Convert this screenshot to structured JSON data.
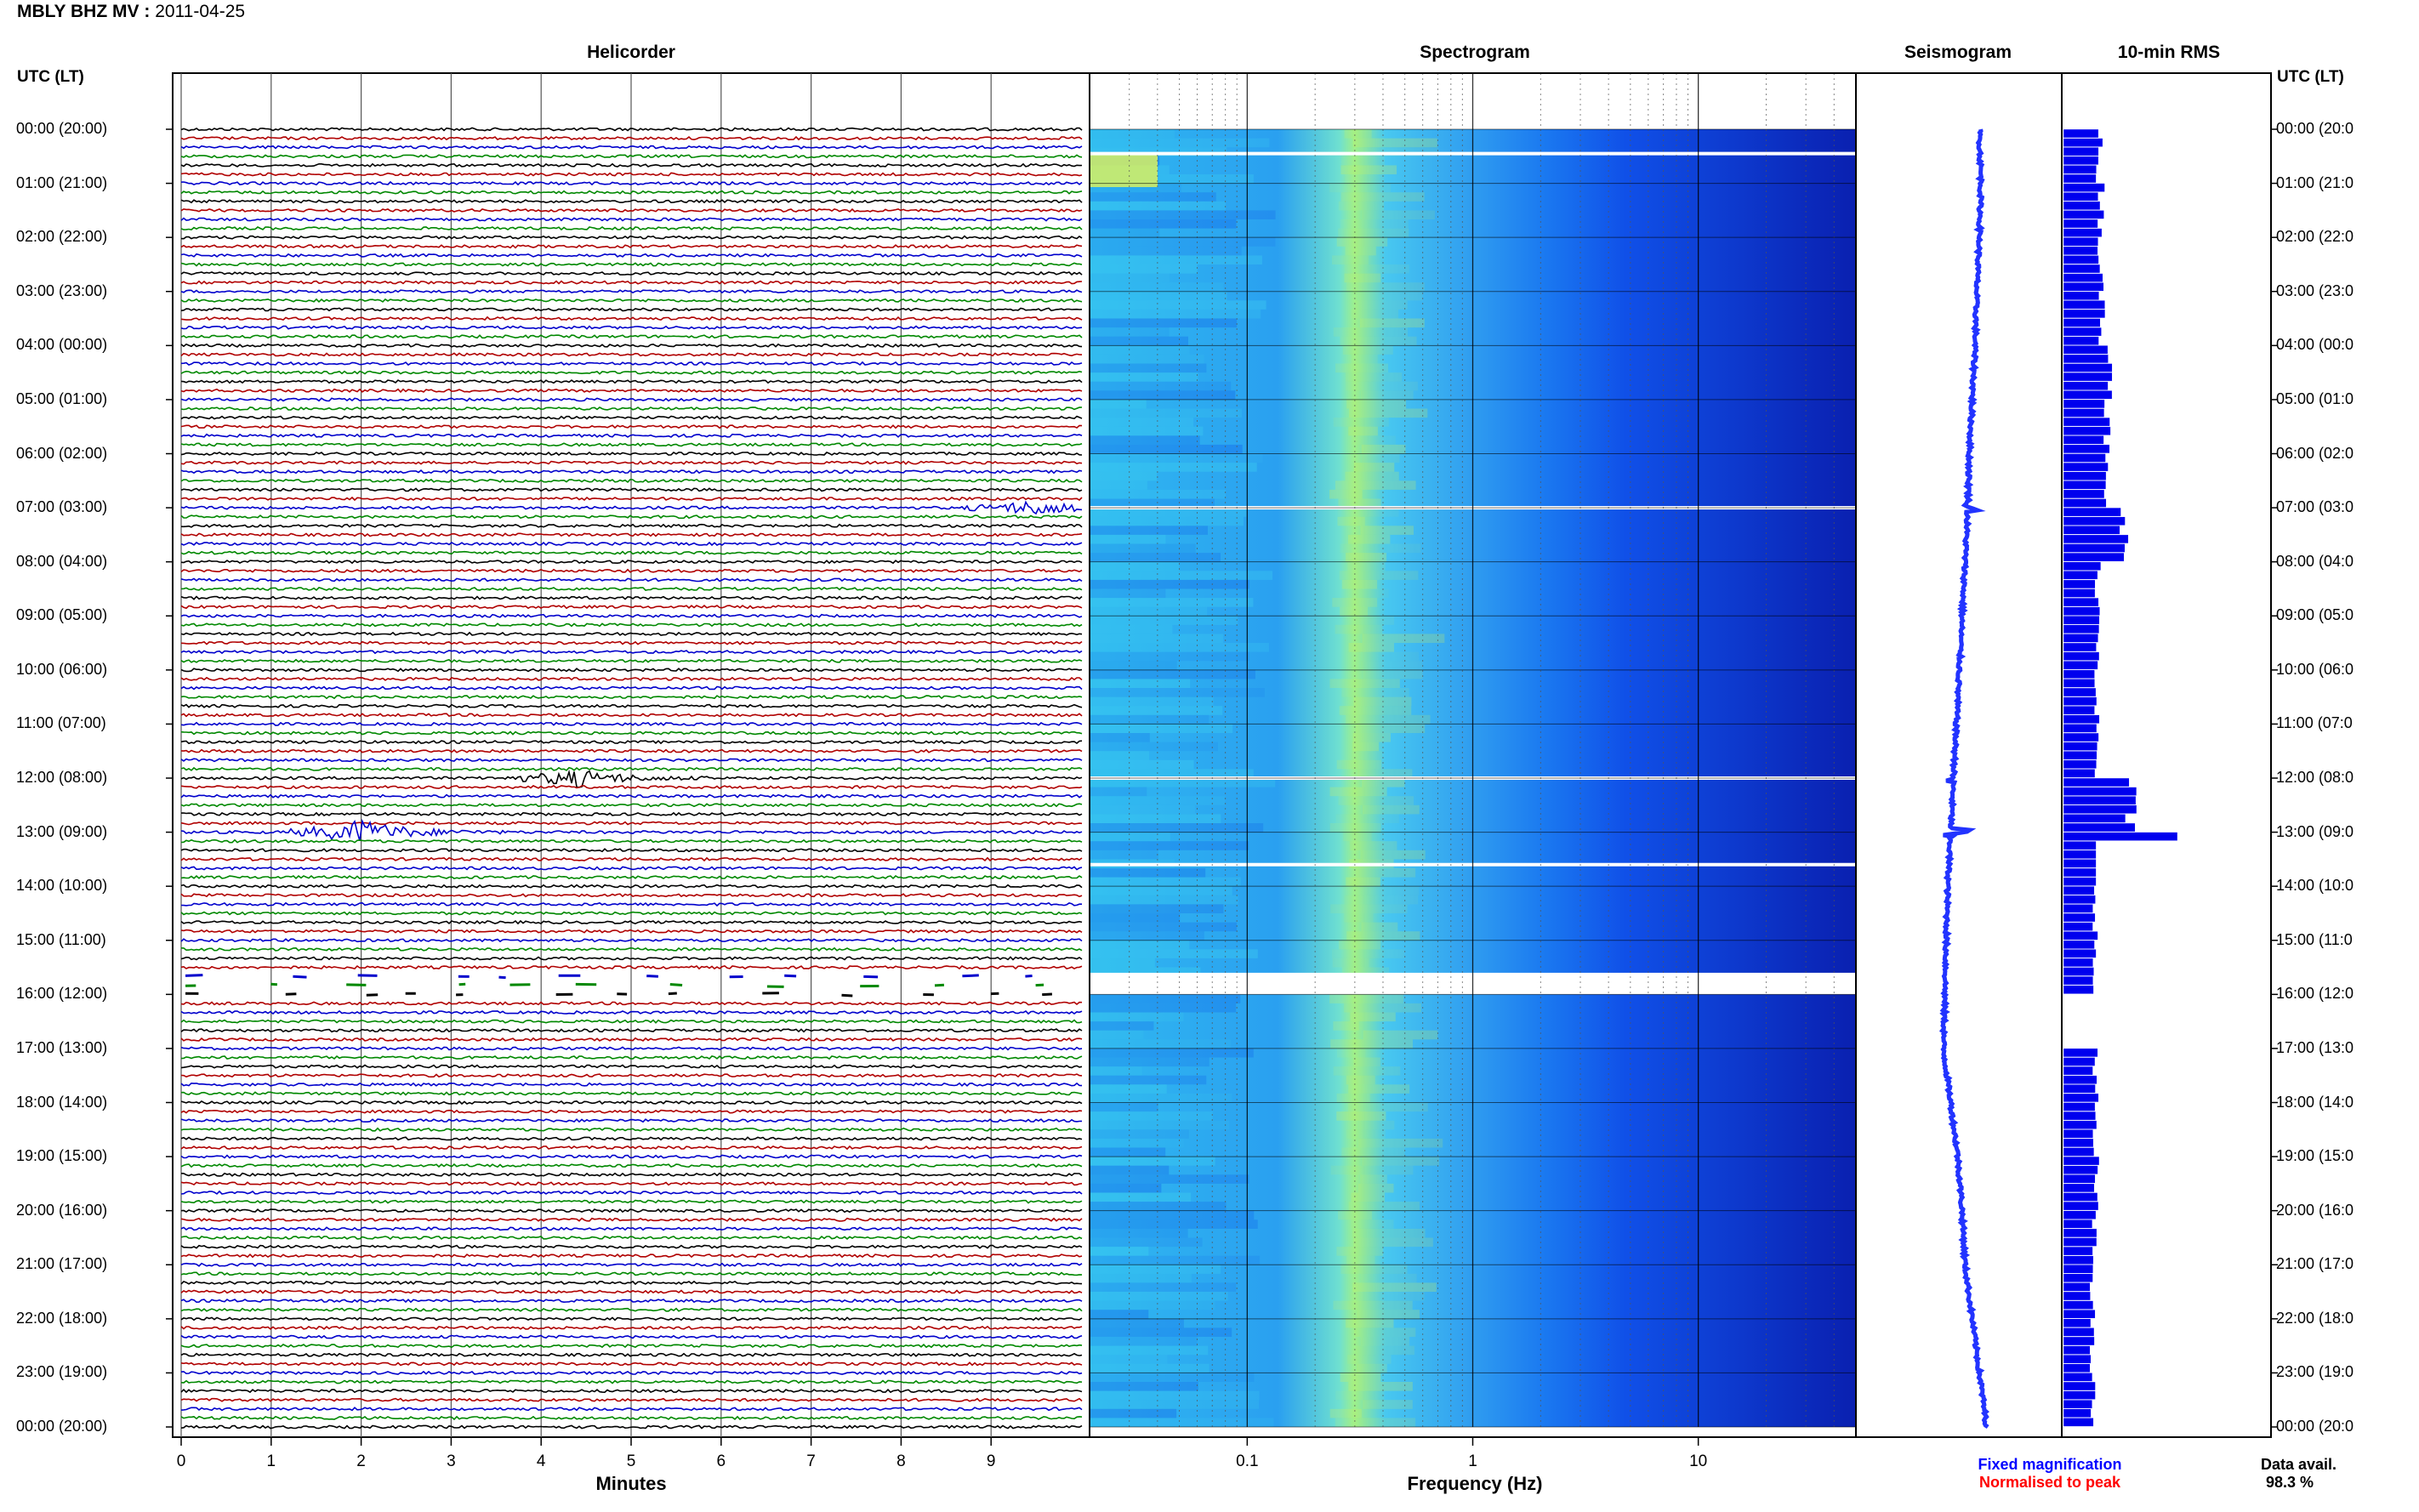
{
  "header": {
    "station": "MBLY BHZ MV",
    "date": "2011-04-25"
  },
  "time_axis_label": "UTC (LT)",
  "time_labels": [
    "00:00 (20:00)",
    "01:00 (21:00)",
    "02:00 (22:00)",
    "03:00 (23:00)",
    "04:00 (00:00)",
    "05:00 (01:00)",
    "06:00 (02:00)",
    "07:00 (03:00)",
    "08:00 (04:00)",
    "09:00 (05:00)",
    "10:00 (06:00)",
    "11:00 (07:00)",
    "12:00 (08:00)",
    "13:00 (09:00)",
    "14:00 (10:00)",
    "15:00 (11:00)",
    "16:00 (12:00)",
    "17:00 (13:00)",
    "18:00 (14:00)",
    "19:00 (15:00)",
    "20:00 (16:00)",
    "21:00 (17:00)",
    "22:00 (18:00)",
    "23:00 (19:00)",
    "00:00 (20:00)"
  ],
  "right_time_labels": [
    "00:00 (20:0",
    "01:00 (21:0",
    "02:00 (22:0",
    "03:00 (23:0",
    "04:00 (00:0",
    "05:00 (01:0",
    "06:00 (02:0",
    "07:00 (03:0",
    "08:00 (04:0",
    "09:00 (05:0",
    "10:00 (06:0",
    "11:00 (07:0",
    "12:00 (08:0",
    "13:00 (09:0",
    "14:00 (10:0",
    "15:00 (11:0",
    "16:00 (12:0",
    "17:00 (13:0",
    "18:00 (14:0",
    "19:00 (15:0",
    "20:00 (16:0",
    "21:00 (17:0",
    "22:00 (18:0",
    "23:00 (19:0",
    "00:00 (20:0"
  ],
  "footer": {
    "fixed_magnification": "Fixed magnification",
    "normalised": "Normalised to peak",
    "data_avail_label": "Data avail.",
    "data_avail_value": "98.3 %"
  },
  "colors": {
    "trace_cycle": [
      "#000000",
      "#b00000",
      "#0000cc",
      "#008800"
    ],
    "fixed_magnification": "#0000ff",
    "normalised": "#ff0000",
    "seismogram": "#2233ff",
    "rms": "#0000ee"
  },
  "chart_data": [
    {
      "type": "line",
      "title": "Helicorder",
      "xlabel": "Minutes",
      "xlim": [
        0,
        10
      ],
      "x_ticks": [
        0,
        1,
        2,
        3,
        4,
        5,
        6,
        7,
        8,
        9
      ],
      "x_tick_labels": [
        "0",
        "1",
        "2",
        "3",
        "4",
        "5",
        "6",
        "7",
        "8",
        "9"
      ],
      "traces_per_hour": 6,
      "hours": 24,
      "events": [
        {
          "hour": 7,
          "minute": 9.5,
          "amplitude": 0.6
        },
        {
          "hour": 12,
          "minute": 4.4,
          "amplitude": 0.7
        },
        {
          "hour": 13,
          "minute": 2.0,
          "amplitude": 1.0
        }
      ],
      "gap": {
        "from_hour": 15.5,
        "to_hour": 16.1
      }
    },
    {
      "type": "heatmap",
      "title": "Spectrogram",
      "xlabel": "Frequency (Hz)",
      "x_scale": "log",
      "xlim": [
        0.02,
        50
      ],
      "x_ticks": [
        0.1,
        1,
        10
      ],
      "x_tick_labels": [
        "0.1",
        "1",
        "10"
      ],
      "peak_frequency_hz": 0.3,
      "gap": {
        "from_hour": 15.6,
        "to_hour": 16.0
      }
    },
    {
      "type": "line",
      "title": "Seismogram",
      "values": [
        0.0,
        0.01,
        0.0,
        -0.02,
        -0.03,
        -0.05,
        -0.07,
        -0.08,
        -0.1,
        -0.12,
        -0.14,
        -0.16,
        -0.18,
        -0.2,
        -0.22,
        -0.23,
        -0.24,
        -0.25,
        -0.2,
        -0.15,
        -0.12,
        -0.1,
        -0.05,
        0.0,
        0.05
      ]
    },
    {
      "type": "bar",
      "title": "10-min RMS",
      "orientation": "horizontal",
      "xlim": [
        0,
        1
      ],
      "values": [
        0.33,
        0.35,
        0.34,
        0.36,
        0.45,
        0.4,
        0.38,
        0.55,
        0.32,
        0.33,
        0.31,
        0.3,
        0.62,
        1.0,
        0.3,
        0.28,
        0.0,
        0.3,
        0.28,
        0.3,
        0.28,
        0.27,
        0.26,
        0.27,
        0.28
      ]
    }
  ]
}
